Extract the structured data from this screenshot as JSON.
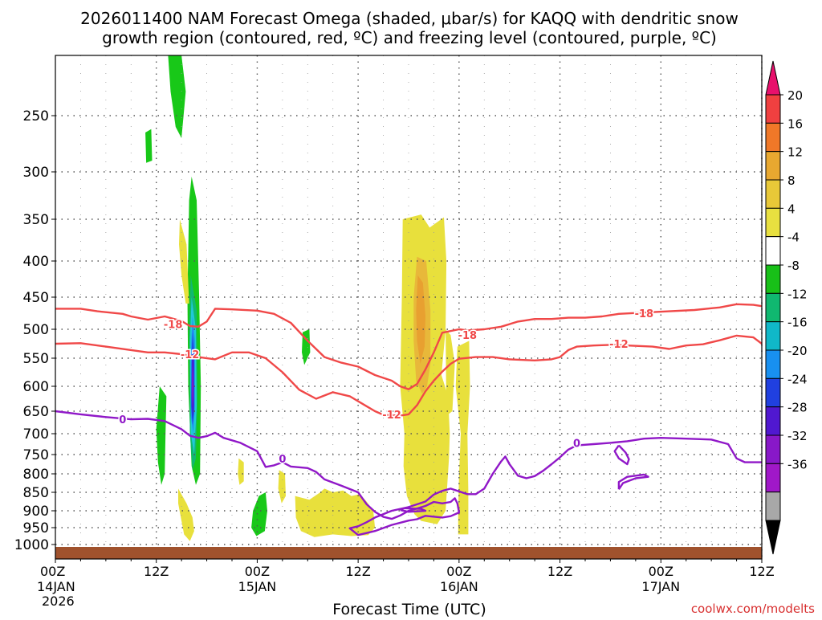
{
  "chart_data": {
    "type": "time-height cross section",
    "title_line1": "2026011400 NAM Forecast Omega (shaded, μbar/s) for KAQQ with dendritic snow",
    "title_line2": "growth region (contoured, red, ºC) and freezing level (contoured, purple, ºC)",
    "xlabel": "Forecast Time (UTC)",
    "credit": "coolwx.com/modelts",
    "x_range_hours": [
      0,
      84
    ],
    "y_range_hPa": [
      200,
      1025
    ],
    "y_ticks": [
      {
        "label": "250",
        "value": 250
      },
      {
        "label": "300",
        "value": 300
      },
      {
        "label": "350",
        "value": 350
      },
      {
        "label": "400",
        "value": 400
      },
      {
        "label": "450",
        "value": 450
      },
      {
        "label": "500",
        "value": 500
      },
      {
        "label": "550",
        "value": 550
      },
      {
        "label": "600",
        "value": 600
      },
      {
        "label": "650",
        "value": 650
      },
      {
        "label": "700",
        "value": 700
      },
      {
        "label": "750",
        "value": 750
      },
      {
        "label": "800",
        "value": 800
      },
      {
        "label": "850",
        "value": 850
      },
      {
        "label": "900",
        "value": 900
      },
      {
        "label": "950",
        "value": 950
      },
      {
        "label": "1000",
        "value": 1000
      }
    ],
    "x_ticks": [
      {
        "hour": 0,
        "label": "00Z",
        "day": "14JAN",
        "year": "2026"
      },
      {
        "hour": 12,
        "label": "12Z"
      },
      {
        "hour": 24,
        "label": "00Z",
        "day": "15JAN"
      },
      {
        "hour": 36,
        "label": "12Z"
      },
      {
        "hour": 48,
        "label": "00Z",
        "day": "16JAN"
      },
      {
        "hour": 60,
        "label": "12Z"
      },
      {
        "hour": 72,
        "label": "00Z",
        "day": "17JAN"
      },
      {
        "hour": 84,
        "label": "12Z"
      }
    ],
    "colorbar": {
      "labels": [
        "20",
        "16",
        "12",
        "8",
        "4",
        "-4",
        "-8",
        "-12",
        "-16",
        "-20",
        "-24",
        "-28",
        "-32",
        "-36"
      ],
      "colors": [
        "#e8106c",
        "#f04040",
        "#f07828",
        "#e8a830",
        "#e8c838",
        "#e8e040",
        "#ffffff",
        "#18c018",
        "#10b870",
        "#10b8c8",
        "#1890f0",
        "#2040e0",
        "#5018d0",
        "#8818c8",
        "#a018c8",
        "#a8a8a8",
        "#000000"
      ]
    },
    "omega_colors": {
      "pos4": "#e8e03c",
      "pos8": "#e8b83a",
      "pos12": "#e8a030",
      "neg4": "#18c818",
      "neg8": "#10b870",
      "neg12": "#20c8d8",
      "neg16": "#2090f0",
      "neg20": "#2040e0",
      "neg24": "#5018d0",
      "neg28": "#8818c8"
    },
    "series": [
      {
        "name": "-18 C isotherm",
        "color": "#f04848",
        "label": "-18",
        "label_points": [
          [
            14,
            492
          ],
          [
            49,
            510
          ],
          [
            70,
            475
          ]
        ],
        "points": [
          [
            0,
            468
          ],
          [
            3,
            468
          ],
          [
            5,
            472
          ],
          [
            8,
            476
          ],
          [
            9,
            480
          ],
          [
            11,
            485
          ],
          [
            13,
            480
          ],
          [
            15,
            487
          ],
          [
            16,
            495
          ],
          [
            17,
            496
          ],
          [
            18,
            488
          ],
          [
            19,
            468
          ],
          [
            21,
            469
          ],
          [
            24,
            471
          ],
          [
            26,
            476
          ],
          [
            28,
            490
          ],
          [
            30,
            520
          ],
          [
            32,
            548
          ],
          [
            34,
            558
          ],
          [
            36,
            565
          ],
          [
            38,
            580
          ],
          [
            40,
            590
          ],
          [
            41,
            600
          ],
          [
            42,
            606
          ],
          [
            43,
            596
          ],
          [
            44,
            570
          ],
          [
            45,
            540
          ],
          [
            46,
            506
          ],
          [
            48,
            500
          ],
          [
            49,
            502
          ],
          [
            51,
            500
          ],
          [
            53,
            496
          ],
          [
            55,
            488
          ],
          [
            57,
            484
          ],
          [
            59,
            484
          ],
          [
            61,
            482
          ],
          [
            63,
            482
          ],
          [
            65,
            480
          ],
          [
            67,
            476
          ],
          [
            70,
            474
          ],
          [
            73,
            472
          ],
          [
            76,
            470
          ],
          [
            79,
            466
          ],
          [
            81,
            461
          ],
          [
            83,
            462
          ],
          [
            84,
            464
          ]
        ]
      },
      {
        "name": "-12 C isotherm",
        "color": "#f04848",
        "label": "-12",
        "label_points": [
          [
            16,
            543
          ],
          [
            40,
            657
          ],
          [
            67,
            525
          ]
        ],
        "points": [
          [
            0,
            525
          ],
          [
            3,
            524
          ],
          [
            6,
            530
          ],
          [
            9,
            536
          ],
          [
            11,
            540
          ],
          [
            13,
            540
          ],
          [
            15,
            543
          ],
          [
            17,
            548
          ],
          [
            19,
            552
          ],
          [
            21,
            540
          ],
          [
            23,
            540
          ],
          [
            25,
            550
          ],
          [
            27,
            575
          ],
          [
            29,
            607
          ],
          [
            31,
            625
          ],
          [
            33,
            612
          ],
          [
            35,
            620
          ],
          [
            37,
            640
          ],
          [
            38,
            650
          ],
          [
            39,
            658
          ],
          [
            41,
            660
          ],
          [
            42,
            657
          ],
          [
            43,
            638
          ],
          [
            44,
            610
          ],
          [
            45,
            590
          ],
          [
            46,
            574
          ],
          [
            47,
            560
          ],
          [
            48,
            551
          ],
          [
            50,
            548
          ],
          [
            52,
            548
          ],
          [
            54,
            552
          ],
          [
            57,
            554
          ],
          [
            59,
            552
          ],
          [
            60,
            548
          ],
          [
            61,
            536
          ],
          [
            62,
            530
          ],
          [
            64,
            528
          ],
          [
            66,
            527
          ],
          [
            68,
            528
          ],
          [
            71,
            530
          ],
          [
            73,
            534
          ],
          [
            75,
            528
          ],
          [
            77,
            526
          ],
          [
            79,
            519
          ],
          [
            81,
            511
          ],
          [
            83,
            514
          ],
          [
            84,
            525
          ]
        ]
      },
      {
        "name": "0 C isotherm",
        "color": "#9018c8",
        "label": "0",
        "label_points": [
          [
            8,
            668
          ],
          [
            27,
            760
          ],
          [
            62,
            722
          ]
        ],
        "points": [
          [
            0,
            650
          ],
          [
            3,
            657
          ],
          [
            6,
            663
          ],
          [
            9,
            668
          ],
          [
            11,
            667
          ],
          [
            13,
            672
          ],
          [
            15,
            690
          ],
          [
            16,
            705
          ],
          [
            17,
            710
          ],
          [
            18,
            706
          ],
          [
            19,
            698
          ],
          [
            20,
            710
          ],
          [
            22,
            722
          ],
          [
            24,
            742
          ],
          [
            25,
            782
          ],
          [
            26,
            778
          ],
          [
            27,
            770
          ],
          [
            28,
            781
          ],
          [
            30,
            785
          ],
          [
            31,
            795
          ],
          [
            32,
            815
          ],
          [
            34,
            832
          ],
          [
            36,
            850
          ],
          [
            37,
            882
          ],
          [
            38,
            903
          ],
          [
            39,
            918
          ],
          [
            40,
            924
          ],
          [
            41,
            914
          ],
          [
            42,
            900
          ],
          [
            43,
            894
          ],
          [
            44,
            887
          ],
          [
            45,
            876
          ],
          [
            46,
            880
          ],
          [
            47,
            876
          ],
          [
            47.5,
            866
          ],
          [
            47.8,
            880
          ],
          [
            48,
            905
          ],
          [
            47,
            916
          ],
          [
            46,
            920
          ],
          [
            44,
            915
          ],
          [
            43,
            925
          ],
          [
            42,
            929
          ],
          [
            40,
            942
          ],
          [
            38,
            960
          ],
          [
            36,
            972
          ],
          [
            35,
            952
          ],
          [
            36,
            946
          ],
          [
            37,
            934
          ],
          [
            38,
            920
          ],
          [
            40,
            900
          ],
          [
            42,
            890
          ],
          [
            44,
            875
          ],
          [
            45,
            856
          ],
          [
            46,
            846
          ],
          [
            47,
            840
          ],
          [
            49,
            855
          ],
          [
            50,
            855
          ],
          [
            51,
            840
          ],
          [
            52,
            800
          ],
          [
            53,
            768
          ],
          [
            53.5,
            755
          ],
          [
            54,
            775
          ],
          [
            55,
            805
          ],
          [
            56,
            812
          ],
          [
            57,
            806
          ],
          [
            58,
            792
          ],
          [
            59,
            775
          ],
          [
            60,
            757
          ],
          [
            61,
            738
          ],
          [
            62,
            728
          ],
          [
            64,
            725
          ],
          [
            66,
            722
          ],
          [
            68,
            718
          ],
          [
            70,
            712
          ],
          [
            72,
            710
          ],
          [
            75,
            712
          ],
          [
            78,
            714
          ],
          [
            80,
            725
          ],
          [
            81,
            760
          ],
          [
            82,
            770
          ],
          [
            84,
            770
          ]
        ]
      },
      {
        "name": "0 C small loop 1",
        "color": "#9018c8",
        "label": "",
        "points": [
          [
            67,
            728
          ],
          [
            66.5,
            742
          ],
          [
            67,
            760
          ],
          [
            68,
            775
          ],
          [
            68.2,
            762
          ],
          [
            67.8,
            745
          ],
          [
            67,
            728
          ]
        ]
      },
      {
        "name": "0 C small loop 2",
        "color": "#9018c8",
        "label": "",
        "points": [
          [
            67,
            842
          ],
          [
            67,
            822
          ],
          [
            68,
            808
          ],
          [
            70,
            802
          ],
          [
            70.5,
            808
          ],
          [
            69,
            812
          ],
          [
            67.5,
            825
          ],
          [
            67,
            842
          ]
        ]
      },
      {
        "name": "0 C small loop 3",
        "color": "#9018c8",
        "label": "",
        "points": [
          [
            41,
            898
          ],
          [
            41.5,
            893
          ],
          [
            43.5,
            895
          ],
          [
            44,
            900
          ],
          [
            42,
            903
          ],
          [
            41,
            898
          ]
        ]
      }
    ]
  }
}
